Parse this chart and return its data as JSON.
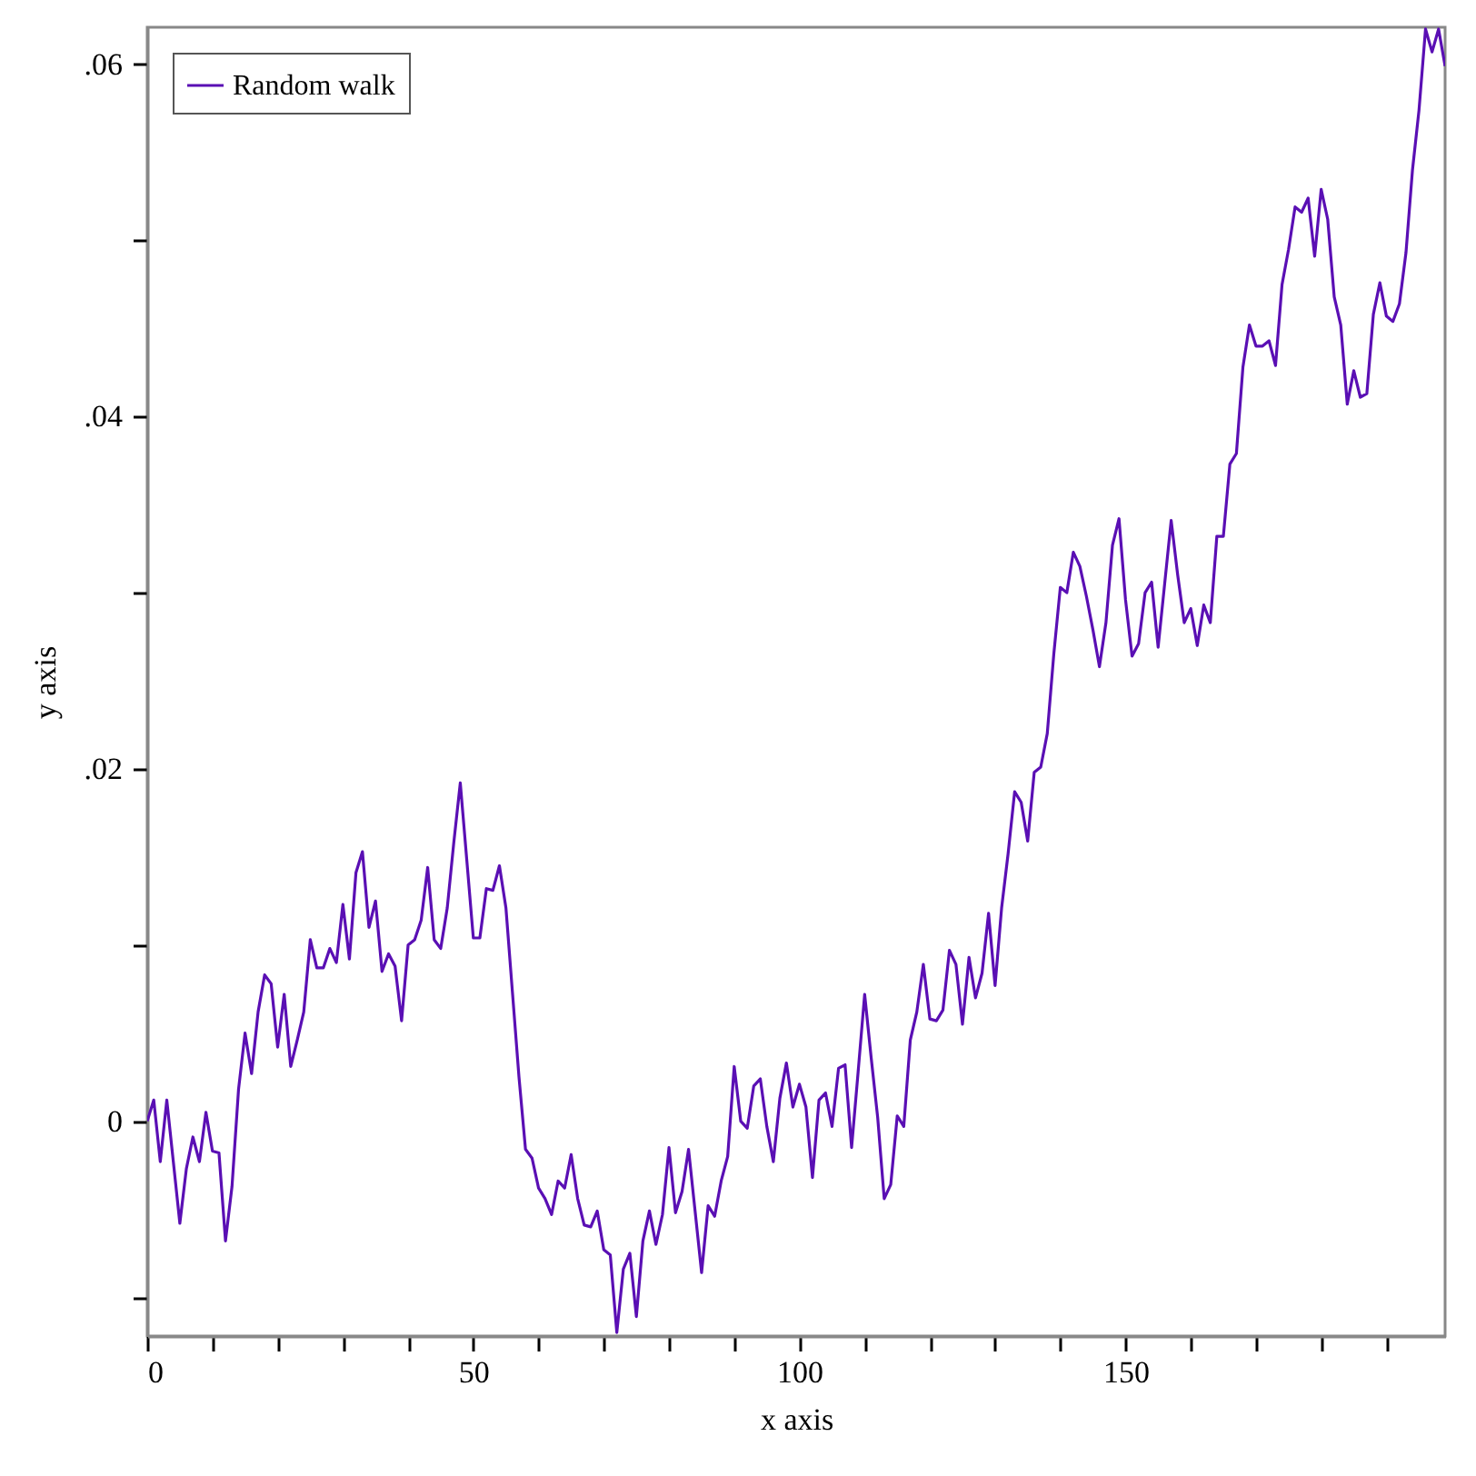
{
  "chart_data": {
    "type": "line",
    "xlabel": "x axis",
    "ylabel": "y axis",
    "x": [
      0,
      1,
      2,
      3,
      5,
      6,
      7,
      8,
      9,
      10,
      11,
      12,
      13,
      14,
      15,
      16,
      17,
      18,
      19,
      20,
      21,
      22,
      23,
      24,
      25,
      26,
      27,
      28,
      29,
      30,
      31,
      32,
      33,
      34,
      35,
      36,
      37,
      38,
      39,
      40,
      41,
      42,
      43,
      44,
      45,
      46,
      47,
      48,
      49,
      50,
      51,
      52,
      53,
      54,
      55,
      56,
      57,
      58,
      59,
      60,
      61,
      62,
      63,
      64,
      65,
      66,
      67,
      68,
      69,
      70,
      71,
      72,
      73,
      74,
      75,
      76,
      77,
      78,
      79,
      80,
      81,
      82,
      83,
      84,
      85,
      86,
      87,
      88,
      89,
      90,
      91,
      92,
      93,
      94,
      95,
      96,
      97,
      98,
      99,
      100,
      101,
      102,
      103,
      104,
      105,
      106,
      107,
      108,
      109,
      110,
      111,
      112,
      113,
      114,
      115,
      116,
      117,
      118,
      119,
      120,
      121,
      122,
      123,
      124,
      125,
      126,
      127,
      128,
      129,
      130,
      131,
      132,
      133,
      134,
      135,
      136,
      137,
      138,
      139,
      140,
      141,
      142,
      143,
      144,
      145,
      146,
      147,
      148,
      149,
      150,
      151,
      152,
      153,
      154,
      155,
      156,
      157,
      158,
      159,
      160,
      161,
      162,
      163,
      164,
      165,
      166,
      167,
      168,
      169,
      170,
      171,
      172,
      173,
      174,
      175,
      176,
      177,
      178,
      179,
      180,
      181,
      182,
      183,
      184,
      185,
      186,
      187,
      188,
      189,
      190,
      191,
      192,
      193,
      194,
      195,
      196,
      197,
      198,
      199
    ],
    "series": [
      {
        "name": "Random walk",
        "color": "#5a0fb4",
        "values": [
          0,
          0.0012,
          -0.0023,
          0.0012,
          -0.0058,
          -0.0027,
          -0.0009,
          -0.0023,
          0.0005,
          -0.0017,
          -0.0018,
          -0.0068,
          -0.0037,
          0.0018,
          0.005,
          0.0027,
          0.0062,
          0.0083,
          0.0078,
          0.0042,
          0.0072,
          0.0031,
          0.0046,
          0.0062,
          0.0103,
          0.0087,
          0.0087,
          0.0098,
          0.009,
          0.0123,
          0.0092,
          0.0141,
          0.0153,
          0.011,
          0.0125,
          0.0085,
          0.0095,
          0.0088,
          0.0057,
          0.01,
          0.0103,
          0.0114,
          0.0144,
          0.0103,
          0.0098,
          0.0121,
          0.0158,
          0.0192,
          0.0148,
          0.0104,
          0.0104,
          0.0132,
          0.0131,
          0.0145,
          0.0121,
          0.0073,
          0.0025,
          -0.0016,
          -0.0021,
          -0.0038,
          -0.0044,
          -0.0053,
          -0.0034,
          -0.0038,
          -0.0019,
          -0.0044,
          -0.0059,
          -0.006,
          -0.0051,
          -0.0073,
          -0.0076,
          -0.012,
          -0.0084,
          -0.0075,
          -0.0111,
          -0.0068,
          -0.0051,
          -0.007,
          -0.0053,
          -0.0015,
          -0.0052,
          -0.004,
          -0.0016,
          -0.0051,
          -0.0086,
          -0.0048,
          -0.0054,
          -0.0034,
          -0.002,
          0.0031,
          0,
          -0.0004,
          0.002,
          0.0024,
          -0.0003,
          -0.0023,
          0.0013,
          0.0033,
          0.0008,
          0.0021,
          0.0008,
          -0.0032,
          0.0012,
          0.0016,
          -0.0003,
          0.003,
          0.0032,
          -0.0015,
          0.0028,
          0.0072,
          0.0036,
          0.0002,
          -0.0044,
          -0.0036,
          0.0003,
          -0.0003,
          0.0046,
          0.0062,
          0.0089,
          0.0058,
          0.0057,
          0.0063,
          0.0097,
          0.0089,
          0.0055,
          0.0093,
          0.007,
          0.0084,
          0.0118,
          0.0077,
          0.0121,
          0.0152,
          0.0187,
          0.0181,
          0.0159,
          0.0198,
          0.0201,
          0.022,
          0.0265,
          0.0303,
          0.03,
          0.0323,
          0.0315,
          0.0298,
          0.0279,
          0.0258,
          0.0283,
          0.0327,
          0.0342,
          0.0296,
          0.0264,
          0.0271,
          0.03,
          0.0306,
          0.0269,
          0.0305,
          0.0341,
          0.031,
          0.0283,
          0.0291,
          0.027,
          0.0293,
          0.0283,
          0.0332,
          0.0332,
          0.0373,
          0.0379,
          0.0428,
          0.0452,
          0.044,
          0.044,
          0.0443,
          0.0429,
          0.0475,
          0.0495,
          0.0519,
          0.0516,
          0.0524,
          0.0491,
          0.0529,
          0.0512,
          0.0468,
          0.0452,
          0.0407,
          0.0426,
          0.0411,
          0.0413,
          0.0458,
          0.0476,
          0.0457,
          0.0454,
          0.0464,
          0.0493,
          0.054,
          0.0574,
          0.062,
          0.0607,
          0.062,
          0.0599
        ]
      }
    ],
    "xlim": [
      0,
      199
    ],
    "ylim": [
      -0.0122,
      0.0621
    ],
    "xticks": [
      0,
      {
        "value": 10,
        "label": null
      },
      {
        "value": 20,
        "label": null
      },
      {
        "value": 30,
        "label": null
      },
      {
        "value": 40,
        "label": null
      },
      50,
      {
        "value": 60,
        "label": null
      },
      {
        "value": 70,
        "label": null
      },
      {
        "value": 80,
        "label": null
      },
      {
        "value": 90,
        "label": null
      },
      100,
      {
        "value": 110,
        "label": null
      },
      {
        "value": 120,
        "label": null
      },
      {
        "value": 130,
        "label": null
      },
      {
        "value": 140,
        "label": null
      },
      150,
      {
        "value": 160,
        "label": null
      },
      {
        "value": 170,
        "label": null
      },
      {
        "value": 180,
        "label": null
      },
      {
        "value": 190,
        "label": null
      }
    ],
    "yticks": [
      {
        "value": -0.01,
        "label": null
      },
      0,
      {
        "value": 0.01,
        "label": null
      },
      {
        "value": 0.02,
        "label": ".02"
      },
      {
        "value": 0.03,
        "label": null
      },
      {
        "value": 0.04,
        "label": ".04"
      },
      {
        "value": 0.05,
        "label": null
      },
      {
        "value": 0.06,
        "label": ".06"
      }
    ],
    "legend": "top left",
    "line_style": "solid"
  }
}
